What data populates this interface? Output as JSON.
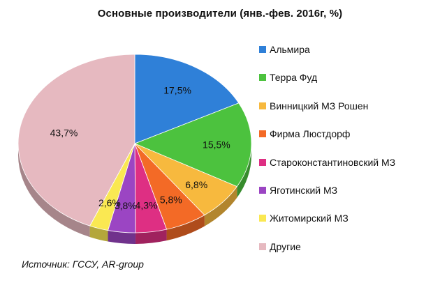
{
  "chart_data": {
    "type": "pie",
    "title": "Основные производители (янв.-фев. 2016г, %)",
    "unit": "%",
    "slices": [
      {
        "name": "Альмира",
        "value": 17.5,
        "label": "17,5%",
        "color": "#2f80d8"
      },
      {
        "name": "Терра Фуд",
        "value": 15.5,
        "label": "15,5%",
        "color": "#4cc23e"
      },
      {
        "name": "Винницкий МЗ Рошен",
        "value": 6.8,
        "label": "6,8%",
        "color": "#f7b93e"
      },
      {
        "name": "Фирма Люстдорф",
        "value": 5.8,
        "label": "5,8%",
        "color": "#f36a26"
      },
      {
        "name": "Староконстантиновский МЗ",
        "value": 4.3,
        "label": "4,3%",
        "color": "#de2f83"
      },
      {
        "name": "Яготинский МЗ",
        "value": 3.8,
        "label": "3,8%",
        "color": "#9b45c3"
      },
      {
        "name": "Житомирский МЗ",
        "value": 2.6,
        "label": "2,6%",
        "color": "#fae852"
      },
      {
        "name": "Другие",
        "value": 43.7,
        "label": "43,7%",
        "color": "#e6b9c0"
      }
    ],
    "legend_position": "right",
    "style": "3d-tilted"
  },
  "source": "Источник: ГССУ, AR-group"
}
